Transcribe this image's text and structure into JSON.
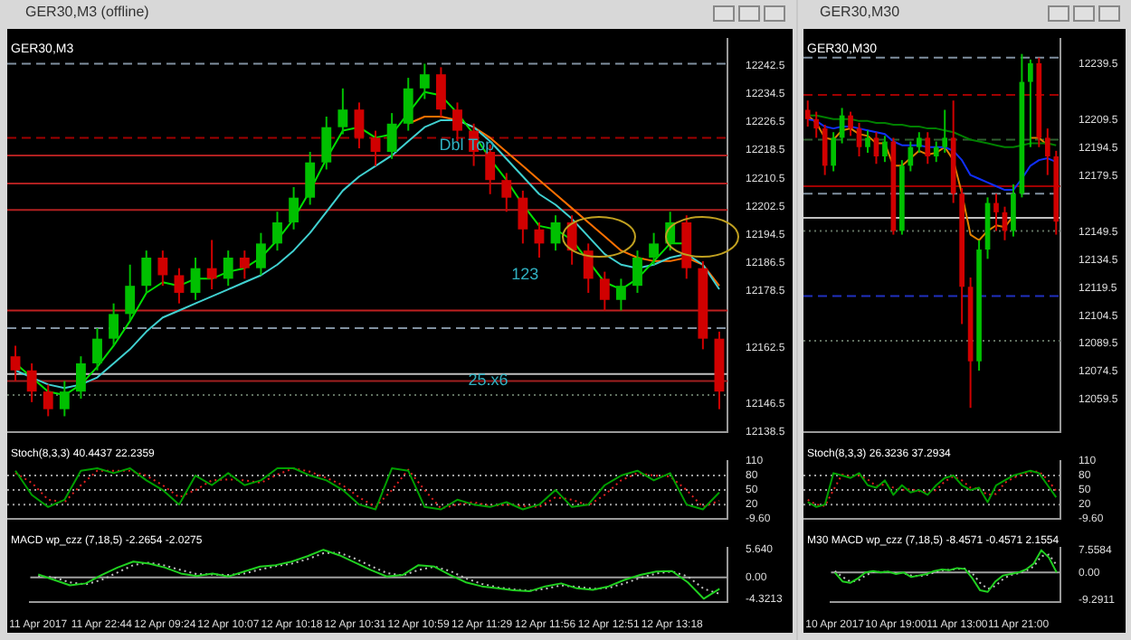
{
  "chart_data": [
    {
      "type": "candlestick",
      "title": "GER30,M3 (offline)",
      "subtitle": "GER30,M3",
      "tick_labels": "y",
      "grid": false,
      "marker": "none",
      "annotations": [
        "Dbl Top",
        "123",
        "25.x6"
      ],
      "categories": [
        null,
        null,
        null,
        null,
        null,
        null,
        null,
        null,
        null,
        null,
        null,
        null,
        null,
        null,
        null,
        null,
        null,
        null,
        null,
        null,
        null,
        null,
        null,
        null,
        null,
        null,
        null,
        null,
        null,
        null,
        null,
        null,
        null,
        null,
        null,
        null,
        null,
        null,
        null,
        null,
        null,
        null,
        null,
        null
      ],
      "ohlc": [
        [
          12160,
          12163,
          12153,
          12156
        ],
        [
          12156,
          12158,
          12147,
          12150
        ],
        [
          12150,
          12152,
          12143,
          12145
        ],
        [
          12145,
          12153,
          12143,
          12150
        ],
        [
          12150,
          12160,
          12148,
          12158
        ],
        [
          12158,
          12168,
          12156,
          12165
        ],
        [
          12165,
          12175,
          12163,
          12172
        ],
        [
          12172,
          12186,
          12170,
          12180
        ],
        [
          12180,
          12190,
          12178,
          12188
        ],
        [
          12188,
          12190,
          12180,
          12183
        ],
        [
          12183,
          12185,
          12175,
          12178
        ],
        [
          12178,
          12188,
          12176,
          12185
        ],
        [
          12185,
          12193,
          12179,
          12182
        ],
        [
          12182,
          12190,
          12180,
          12188
        ],
        [
          12188,
          12190,
          12182,
          12185
        ],
        [
          12185,
          12195,
          12183,
          12192
        ],
        [
          12192,
          12201,
          12190,
          12198
        ],
        [
          12198,
          12208,
          12196,
          12205
        ],
        [
          12205,
          12218,
          12203,
          12215
        ],
        [
          12215,
          12228,
          12213,
          12225
        ],
        [
          12225,
          12236,
          12223,
          12230
        ],
        [
          12230,
          12232,
          12219,
          12222
        ],
        [
          12222,
          12224,
          12214,
          12218
        ],
        [
          12218,
          12229,
          12216,
          12226
        ],
        [
          12226,
          12239,
          12224,
          12236
        ],
        [
          12236,
          12243,
          12233,
          12240
        ],
        [
          12240,
          12242,
          12228,
          12230
        ],
        [
          12230,
          12232,
          12221,
          12224
        ],
        [
          12224,
          12226,
          12214,
          12218
        ],
        [
          12218,
          12220,
          12206,
          12210
        ],
        [
          12210,
          12212,
          12201,
          12205
        ],
        [
          12205,
          12207,
          12192,
          12196
        ],
        [
          12196,
          12198,
          12188,
          12192
        ],
        [
          12192,
          12200,
          12190,
          12198
        ],
        [
          12198,
          12200,
          12186,
          12190
        ],
        [
          12190,
          12192,
          12178,
          12182
        ],
        [
          12182,
          12184,
          12173,
          12176
        ],
        [
          12176,
          12182,
          12173,
          12180
        ],
        [
          12180,
          12190,
          12178,
          12188
        ],
        [
          12188,
          12195,
          12186,
          12192
        ],
        [
          12192,
          12201,
          12190,
          12198
        ],
        [
          12198,
          12200,
          12182,
          12185
        ],
        [
          12185,
          12187,
          12162,
          12165
        ],
        [
          12165,
          12167,
          12145,
          12150
        ]
      ],
      "series": [
        {
          "type": "line",
          "color": "#00e000",
          "values": [
            12158,
            12154,
            12150,
            12149,
            12152,
            12157,
            12163,
            12170,
            12178,
            12181,
            12180,
            12182,
            12182,
            12184,
            12185,
            12188,
            12193,
            12199,
            12207,
            12216,
            12224,
            12225,
            12222,
            12223,
            12229,
            12235,
            12234,
            12229,
            12223,
            12216,
            12210,
            12203,
            12197,
            12196,
            12193,
            12187,
            12181,
            12179,
            12182,
            12187,
            12192,
            12192,
            null,
            null
          ]
        },
        {
          "type": "line",
          "color": "#40d0d0",
          "values": [
            12156,
            12154,
            12152,
            12151,
            12152,
            12154,
            12158,
            12162,
            12167,
            12171,
            12173,
            12175,
            12177,
            12179,
            12181,
            12183,
            12186,
            12190,
            12195,
            12201,
            12207,
            12211,
            12214,
            12217,
            12221,
            12225,
            12227,
            12227,
            12225,
            12221,
            12216,
            12211,
            12206,
            12203,
            12199,
            12194,
            12189,
            12186,
            12185,
            12186,
            12188,
            12189,
            12186,
            12179
          ]
        },
        {
          "type": "line",
          "color": "#ff7000",
          "values": [
            null,
            null,
            null,
            null,
            null,
            null,
            null,
            null,
            null,
            null,
            null,
            null,
            null,
            null,
            null,
            null,
            null,
            null,
            null,
            null,
            null,
            null,
            null,
            null,
            12226,
            12228,
            12228,
            12227,
            12225,
            12222,
            12218,
            12214,
            12210,
            12206,
            12202,
            12198,
            12194,
            12190,
            12188,
            12187,
            12187,
            12188,
            12186,
            12180
          ]
        }
      ],
      "ylim": [
        12138.5,
        12250
      ],
      "yticks": [
        12242.5,
        12234.5,
        12226.5,
        12218.5,
        12210.5,
        12202.5,
        12194.5,
        12186.5,
        12178.5,
        12162.5,
        12146.5,
        12138.5
      ],
      "ref_lines": [
        {
          "axis": "y",
          "value": 12243,
          "color": "#8090a0",
          "line_style": "dashed"
        },
        {
          "axis": "y",
          "value": 12222,
          "color": "#a00000",
          "line_style": "dashed"
        },
        {
          "axis": "y",
          "value": 12217,
          "color": "#b02020",
          "line_style": "solid"
        },
        {
          "axis": "y",
          "value": 12209,
          "color": "#b02020",
          "line_style": "solid"
        },
        {
          "axis": "y",
          "value": 12201.5,
          "color": "#b02020",
          "line_style": "solid"
        },
        {
          "axis": "y",
          "value": 12173,
          "color": "#c02020",
          "line_style": "solid"
        },
        {
          "axis": "y",
          "value": 12168,
          "color": "#8090a0",
          "line_style": "dashed"
        },
        {
          "axis": "y",
          "value": 12155,
          "color": "#c0c0c0",
          "line_style": "solid"
        },
        {
          "axis": "y",
          "value": 12153,
          "color": "#a02020",
          "line_style": "solid"
        },
        {
          "axis": "y",
          "value": 12149,
          "color": "#607060",
          "line_style": "dotted"
        }
      ]
    },
    {
      "type": "line",
      "title": "Stoch(8,3,3) 40.4437 22.2359",
      "tick_labels": "y",
      "grid": false,
      "marker": "none",
      "categories": [
        null,
        null,
        null,
        null,
        null,
        null,
        null,
        null,
        null,
        null,
        null,
        null,
        null,
        null,
        null,
        null,
        null,
        null,
        null,
        null,
        null,
        null,
        null,
        null,
        null,
        null,
        null,
        null,
        null,
        null,
        null,
        null,
        null,
        null,
        null,
        null,
        null,
        null,
        null,
        null,
        null,
        null,
        null,
        null
      ],
      "series": [
        {
          "color": "#00a000",
          "line_style": "solid",
          "values": [
            90,
            40,
            15,
            30,
            90,
            95,
            85,
            95,
            70,
            50,
            20,
            80,
            60,
            85,
            60,
            70,
            95,
            95,
            80,
            70,
            50,
            20,
            10,
            95,
            90,
            15,
            10,
            30,
            20,
            15,
            25,
            10,
            20,
            50,
            15,
            20,
            60,
            80,
            90,
            70,
            85,
            20,
            10,
            45
          ]
        },
        {
          "color": "#e02020",
          "line_style": "dotted",
          "values": [
            85,
            65,
            30,
            25,
            60,
            90,
            90,
            90,
            80,
            60,
            35,
            50,
            70,
            72,
            70,
            65,
            82,
            95,
            88,
            75,
            60,
            35,
            15,
            50,
            92,
            50,
            12,
            20,
            25,
            17,
            20,
            17,
            15,
            35,
            30,
            18,
            40,
            70,
            85,
            80,
            78,
            50,
            15,
            28
          ]
        }
      ],
      "ylim": [
        -9.6,
        110
      ],
      "yticks": [
        110,
        80,
        50,
        20,
        {
          "value": -9.6,
          "label": "-9.60"
        }
      ],
      "ref_lines": [
        {
          "axis": "y",
          "value": 80,
          "color": "#a0a0a0",
          "line_style": "dotted"
        },
        {
          "axis": "y",
          "value": 50,
          "color": "#a0a0a0",
          "line_style": "dotted"
        },
        {
          "axis": "y",
          "value": 20,
          "color": "#a0a0a0",
          "line_style": "dotted"
        }
      ]
    },
    {
      "type": "line",
      "title": "MACD wp_czz (7,18,5) -2.2654 -2.0275",
      "grid": false,
      "marker": "none",
      "categories": [
        "11 Apr 2017",
        null,
        null,
        null,
        "11 Apr 22:44",
        null,
        null,
        null,
        "12 Apr 09:24",
        null,
        null,
        null,
        "12 Apr 10:07",
        null,
        null,
        null,
        "12 Apr 10:18",
        null,
        null,
        null,
        "12 Apr 10:31",
        null,
        null,
        null,
        "12 Apr 10:59",
        null,
        null,
        null,
        "12 Apr 11:29",
        null,
        null,
        null,
        "12 Apr 11:56",
        null,
        null,
        null,
        "12 Apr 12:51",
        null,
        null,
        null,
        "12 Apr 13:18",
        null,
        null,
        null
      ],
      "series": [
        {
          "color": "#20d020",
          "line_style": "solid",
          "values": [
            0.6,
            -0.5,
            -1.6,
            -1.2,
            0.5,
            2,
            3.2,
            2.8,
            2,
            0.8,
            0.3,
            0.8,
            0.2,
            1.2,
            2.2,
            2.5,
            3.2,
            4.3,
            5.6,
            4.5,
            3,
            1.5,
            0.2,
            0.5,
            2.5,
            2.2,
            0.5,
            -1,
            -1.8,
            -2.2,
            -2.6,
            -2.8,
            -1.8,
            -1.2,
            -2.2,
            -2.5,
            -1.8,
            -0.5,
            0.5,
            1.2,
            1.3,
            -1,
            -4.3,
            -2.3
          ]
        },
        {
          "color": "#c0c0c0",
          "line_style": "dotted",
          "values": [
            0.3,
            0,
            -1,
            -1.4,
            -0.5,
            1,
            2.5,
            3,
            2.4,
            1.5,
            0.7,
            0.6,
            0.5,
            0.8,
            1.6,
            2.3,
            2.8,
            3.7,
            4.9,
            5,
            3.8,
            2.3,
            0.9,
            0.4,
            1.5,
            2.2,
            1.3,
            -0.2,
            -1.3,
            -2,
            -2.4,
            -2.7,
            -2.3,
            -1.6,
            -1.9,
            -2.3,
            -2.1,
            -1.2,
            -0.1,
            0.8,
            1.2,
            0.2,
            -2.3,
            -3.3
          ]
        }
      ],
      "ylim": [
        -4.9,
        6
      ],
      "yticks": [
        {
          "value": 5.64,
          "label": "5.640"
        },
        {
          "value": 0,
          "label": "0.00"
        },
        {
          "value": -4.3213,
          "label": "-4.3213"
        }
      ],
      "ref_lines": [
        {
          "axis": "y",
          "value": 0,
          "color": "#a0a0a0",
          "line_style": "solid"
        }
      ]
    },
    {
      "type": "candlestick",
      "title": "GER30,M30",
      "subtitle": "GER30,M30",
      "tick_labels": "y",
      "grid": false,
      "marker": "none",
      "categories": [
        null,
        null,
        null,
        null,
        null,
        null,
        null,
        null,
        null,
        null,
        null,
        null,
        null,
        null,
        null,
        null,
        null,
        null,
        null,
        null,
        null,
        null,
        null,
        null,
        null,
        null,
        null,
        null,
        null,
        null
      ],
      "ohlc": [
        [
          12215,
          12220,
          12206,
          12210
        ],
        [
          12210,
          12214,
          12200,
          12205
        ],
        [
          12205,
          12207,
          12180,
          12185
        ],
        [
          12185,
          12203,
          12182,
          12200
        ],
        [
          12200,
          12216,
          12197,
          12212
        ],
        [
          12212,
          12214,
          12201,
          12205
        ],
        [
          12205,
          12208,
          12190,
          12195
        ],
        [
          12195,
          12204,
          12192,
          12200
        ],
        [
          12200,
          12203,
          12186,
          12190
        ],
        [
          12190,
          12201,
          12187,
          12198
        ],
        [
          12198,
          12200,
          12148,
          12150
        ],
        [
          12150,
          12188,
          12148,
          12185
        ],
        [
          12185,
          12198,
          12182,
          12195
        ],
        [
          12195,
          12203,
          12192,
          12200
        ],
        [
          12200,
          12203,
          12186,
          12190
        ],
        [
          12190,
          12198,
          12187,
          12195
        ],
        [
          12195,
          12215,
          12192,
          12200
        ],
        [
          12200,
          12220,
          12165,
          12170
        ],
        [
          12170,
          12173,
          12100,
          12120
        ],
        [
          12120,
          12125,
          12055,
          12080
        ],
        [
          12080,
          12145,
          12075,
          12140
        ],
        [
          12140,
          12168,
          12135,
          12165
        ],
        [
          12165,
          12170,
          12150,
          12160
        ],
        [
          12160,
          12163,
          12145,
          12150
        ],
        [
          12150,
          12175,
          12147,
          12170
        ],
        [
          12170,
          12245,
          12168,
          12230
        ],
        [
          12230,
          12242,
          12195,
          12240
        ],
        [
          12240,
          12243,
          12195,
          12200
        ],
        [
          12200,
          12205,
          12180,
          12190
        ],
        [
          12190,
          12193,
          12148,
          12155
        ]
      ],
      "series": [
        {
          "type": "line",
          "color": "#008000",
          "values": [
            12212,
            12212,
            12211,
            12210,
            12210,
            12210,
            12209,
            12209,
            12208,
            12208,
            12207,
            12207,
            12206,
            12206,
            12205,
            12205,
            12204,
            12203,
            12201,
            12199,
            12198,
            12197,
            12196,
            12195,
            12195,
            12196,
            12197,
            12197,
            12197,
            12196
          ]
        },
        {
          "type": "line",
          "color": "#1030ff",
          "values": [
            12210,
            12209,
            12206,
            12205,
            12206,
            12206,
            12205,
            12204,
            12203,
            12202,
            12198,
            12196,
            12196,
            12196,
            12195,
            12195,
            12195,
            12193,
            12188,
            12180,
            12178,
            12176,
            12174,
            12172,
            12172,
            12178,
            12185,
            12188,
            12189,
            12187
          ]
        },
        {
          "type": "line",
          "color": "#e08000",
          "values": [
            12212,
            12208,
            12200,
            12199,
            12204,
            12205,
            12202,
            12201,
            12197,
            12197,
            12185,
            12185,
            12189,
            12193,
            12191,
            12192,
            12195,
            12188,
            12170,
            12148,
            12145,
            12150,
            12153,
            12152,
            12158,
            null,
            12200,
            12200,
            12196,
            null
          ]
        }
      ],
      "ylim": [
        12042,
        12253
      ],
      "yticks": [
        12239.5,
        12209.5,
        12194.5,
        12179.5,
        12149.5,
        12134.5,
        12119.5,
        12104.5,
        12089.5,
        12074.5,
        12059.5
      ],
      "ref_lines": [
        {
          "axis": "y",
          "value": 12243,
          "color": "#8090a0",
          "line_style": "dashed"
        },
        {
          "axis": "y",
          "value": 12223,
          "color": "#a00000",
          "line_style": "dashed"
        },
        {
          "axis": "y",
          "value": 12199,
          "color": "#306030",
          "line_style": "dashed"
        },
        {
          "axis": "y",
          "value": 12174,
          "color": "#a00000",
          "line_style": "solid"
        },
        {
          "axis": "y",
          "value": 12170,
          "color": "#8090a0",
          "line_style": "dashed"
        },
        {
          "axis": "y",
          "value": 12157,
          "color": "#c0c0c0",
          "line_style": "solid"
        },
        {
          "axis": "y",
          "value": 12150,
          "color": "#607060",
          "line_style": "dotted"
        },
        {
          "axis": "y",
          "value": 12115,
          "color": "#2030c0",
          "line_style": "dashed"
        },
        {
          "axis": "y",
          "value": 12091,
          "color": "#607060",
          "line_style": "dotted"
        }
      ]
    },
    {
      "type": "line",
      "title": "Stoch(8,3,3) 26.3236 37.2934",
      "tick_labels": "y",
      "grid": false,
      "marker": "none",
      "categories": [
        null,
        null,
        null,
        null,
        null,
        null,
        null,
        null,
        null,
        null,
        null,
        null,
        null,
        null,
        null,
        null,
        null,
        null,
        null,
        null,
        null,
        null,
        null,
        null,
        null,
        null,
        null,
        null,
        null,
        null
      ],
      "series": [
        {
          "color": "#00a000",
          "line_style": "solid",
          "values": [
            25,
            15,
            20,
            85,
            80,
            75,
            85,
            60,
            55,
            70,
            40,
            60,
            45,
            50,
            40,
            60,
            75,
            80,
            60,
            50,
            55,
            25,
            60,
            70,
            80,
            85,
            90,
            85,
            60,
            35
          ]
        },
        {
          "color": "#e02020",
          "line_style": "dotted",
          "values": [
            30,
            20,
            17,
            50,
            82,
            78,
            80,
            72,
            58,
            62,
            55,
            50,
            52,
            48,
            45,
            50,
            68,
            78,
            70,
            55,
            52,
            40,
            42,
            65,
            75,
            82,
            88,
            88,
            72,
            48
          ]
        }
      ],
      "ylim": [
        -9.6,
        110
      ],
      "yticks": [
        110,
        80,
        50,
        20,
        {
          "value": -9.6,
          "label": "-9.60"
        }
      ],
      "ref_lines": [
        {
          "axis": "y",
          "value": 80,
          "color": "#a0a0a0",
          "line_style": "dotted"
        },
        {
          "axis": "y",
          "value": 50,
          "color": "#a0a0a0",
          "line_style": "dotted"
        },
        {
          "axis": "y",
          "value": 20,
          "color": "#a0a0a0",
          "line_style": "dotted"
        }
      ]
    },
    {
      "type": "line",
      "title": "M30 MACD wp_czz (7,18,5) -8.4571 -0.4571 2.1554",
      "grid": false,
      "marker": "none",
      "categories": [
        "10 Apr 2017",
        null,
        null,
        null,
        null,
        null,
        null,
        null,
        "10 Apr 19:00",
        null,
        null,
        null,
        null,
        null,
        null,
        null,
        "11 Apr 13:00",
        null,
        null,
        null,
        null,
        null,
        null,
        null,
        "11 Apr 21:00",
        null,
        null,
        null,
        null,
        null
      ],
      "series": [
        {
          "color": "#20d020",
          "line_style": "solid",
          "values": [
            0,
            -3,
            -3.5,
            -2,
            0,
            0.5,
            0,
            0.3,
            -0.5,
            0,
            -1.5,
            -1,
            -0.5,
            0.5,
            1,
            0.8,
            1.5,
            1.2,
            -2,
            -6,
            -6.5,
            -3,
            -1,
            -0.5,
            0,
            1,
            3,
            7.5,
            5,
            0
          ]
        },
        {
          "color": "#c0c0c0",
          "line_style": "dotted",
          "values": [
            0.5,
            -1.5,
            -3,
            -2.8,
            -1,
            0.2,
            0.2,
            0.2,
            -0.2,
            -0.2,
            -1,
            -1.2,
            -0.8,
            0,
            0.7,
            0.9,
            1.2,
            1.3,
            -0.3,
            -3.5,
            -5.5,
            -4.5,
            -2.2,
            -0.8,
            -0.3,
            0.5,
            2,
            5.5,
            6,
            2.5
          ]
        }
      ],
      "ylim": [
        -9.8,
        8.3
      ],
      "yticks": [
        {
          "value": 7.5584,
          "label": "7.5584"
        },
        {
          "value": 0,
          "label": "0.00"
        },
        {
          "value": -9.2911,
          "label": "-9.2911"
        }
      ],
      "ref_lines": [
        {
          "axis": "y",
          "value": 0,
          "color": "#a0a0a0",
          "line_style": "solid"
        }
      ]
    }
  ]
}
